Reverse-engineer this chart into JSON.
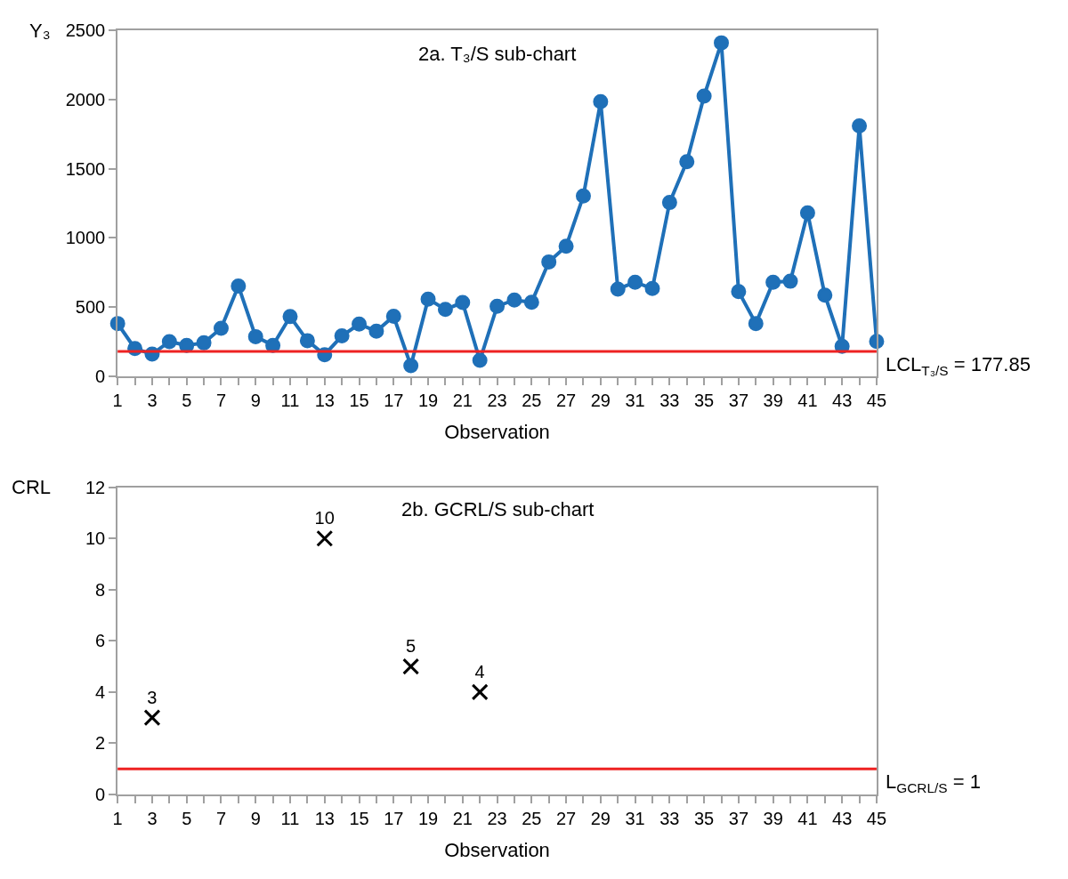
{
  "chart_data": [
    {
      "type": "line",
      "title": "2a. T₃/S sub-chart",
      "xlabel": "Observation",
      "ylabel": "Y₃",
      "x": [
        1,
        2,
        3,
        4,
        5,
        6,
        7,
        8,
        9,
        10,
        11,
        12,
        13,
        14,
        15,
        16,
        17,
        18,
        19,
        20,
        21,
        22,
        23,
        24,
        25,
        26,
        27,
        28,
        29,
        30,
        31,
        32,
        33,
        34,
        35,
        36,
        37,
        38,
        39,
        40,
        41,
        42,
        43,
        44,
        45
      ],
      "series": [
        {
          "color": "#1f70b8",
          "values": [
            380,
            199,
            158,
            249,
            222,
            240,
            346,
            652,
            285,
            222,
            430,
            256,
            154,
            290,
            376,
            324,
            432,
            75,
            557,
            482,
            532,
            113,
            505,
            550,
            534,
            826,
            939,
            1303,
            1986,
            629,
            679,
            633,
            1256,
            1552,
            2027,
            2412,
            611,
            380,
            679,
            686,
            1181,
            586,
            215,
            1810,
            251
          ]
        }
      ],
      "xlim": [
        1,
        45
      ],
      "xticks": [
        1,
        {
          "value": 2,
          "label": null
        },
        3,
        {
          "value": 4,
          "label": null
        },
        5,
        {
          "value": 6,
          "label": null
        },
        7,
        {
          "value": 8,
          "label": null
        },
        9,
        {
          "value": 10,
          "label": null
        },
        11,
        {
          "value": 12,
          "label": null
        },
        13,
        {
          "value": 14,
          "label": null
        },
        15,
        {
          "value": 16,
          "label": null
        },
        17,
        {
          "value": 18,
          "label": null
        },
        19,
        {
          "value": 20,
          "label": null
        },
        21,
        {
          "value": 22,
          "label": null
        },
        23,
        {
          "value": 24,
          "label": null
        },
        25,
        {
          "value": 26,
          "label": null
        },
        27,
        {
          "value": 28,
          "label": null
        },
        29,
        {
          "value": 30,
          "label": null
        },
        31,
        {
          "value": 32,
          "label": null
        },
        33,
        {
          "value": 34,
          "label": null
        },
        35,
        {
          "value": 36,
          "label": null
        },
        37,
        {
          "value": 38,
          "label": null
        },
        39,
        {
          "value": 40,
          "label": null
        },
        41,
        {
          "value": 42,
          "label": null
        },
        43,
        {
          "value": 44,
          "label": null
        },
        45
      ],
      "ylim": [
        0,
        2500
      ],
      "yticks": [
        0,
        500,
        1000,
        1500,
        2000,
        2500
      ],
      "ref_lines": [
        {
          "axis": "y",
          "value": 177.85,
          "label": "LCL$_{T₃/S}$ = 177.85",
          "color": "#ee2222"
        }
      ],
      "marker": "circle",
      "line_style": "solid"
    },
    {
      "type": "scatter",
      "title": "2b. GCRL/S sub-chart",
      "xlabel": "Observation",
      "ylabel": "CRL",
      "x": [
        3,
        13,
        18,
        22
      ],
      "series": [
        {
          "color": "#000000",
          "values": [
            3,
            10,
            5,
            4
          ]
        }
      ],
      "xlim": [
        1,
        45
      ],
      "xticks": [
        1,
        {
          "value": 2,
          "label": null
        },
        3,
        {
          "value": 4,
          "label": null
        },
        5,
        {
          "value": 6,
          "label": null
        },
        7,
        {
          "value": 8,
          "label": null
        },
        9,
        {
          "value": 10,
          "label": null
        },
        11,
        {
          "value": 12,
          "label": null
        },
        13,
        {
          "value": 14,
          "label": null
        },
        15,
        {
          "value": 16,
          "label": null
        },
        17,
        {
          "value": 18,
          "label": null
        },
        19,
        {
          "value": 20,
          "label": null
        },
        21,
        {
          "value": 22,
          "label": null
        },
        23,
        {
          "value": 24,
          "label": null
        },
        25,
        {
          "value": 26,
          "label": null
        },
        27,
        {
          "value": 28,
          "label": null
        },
        29,
        {
          "value": 30,
          "label": null
        },
        31,
        {
          "value": 32,
          "label": null
        },
        33,
        {
          "value": 34,
          "label": null
        },
        35,
        {
          "value": 36,
          "label": null
        },
        37,
        {
          "value": 38,
          "label": null
        },
        39,
        {
          "value": 40,
          "label": null
        },
        41,
        {
          "value": 42,
          "label": null
        },
        43,
        {
          "value": 44,
          "label": null
        },
        45
      ],
      "ylim": [
        0,
        12
      ],
      "yticks": [
        0,
        2,
        4,
        6,
        8,
        10,
        12
      ],
      "ref_lines": [
        {
          "axis": "y",
          "value": 1,
          "label": "L$_{GCRL/S}$ = 1",
          "color": "#ee2222"
        }
      ],
      "marker": "cross",
      "data_labels": true
    }
  ]
}
